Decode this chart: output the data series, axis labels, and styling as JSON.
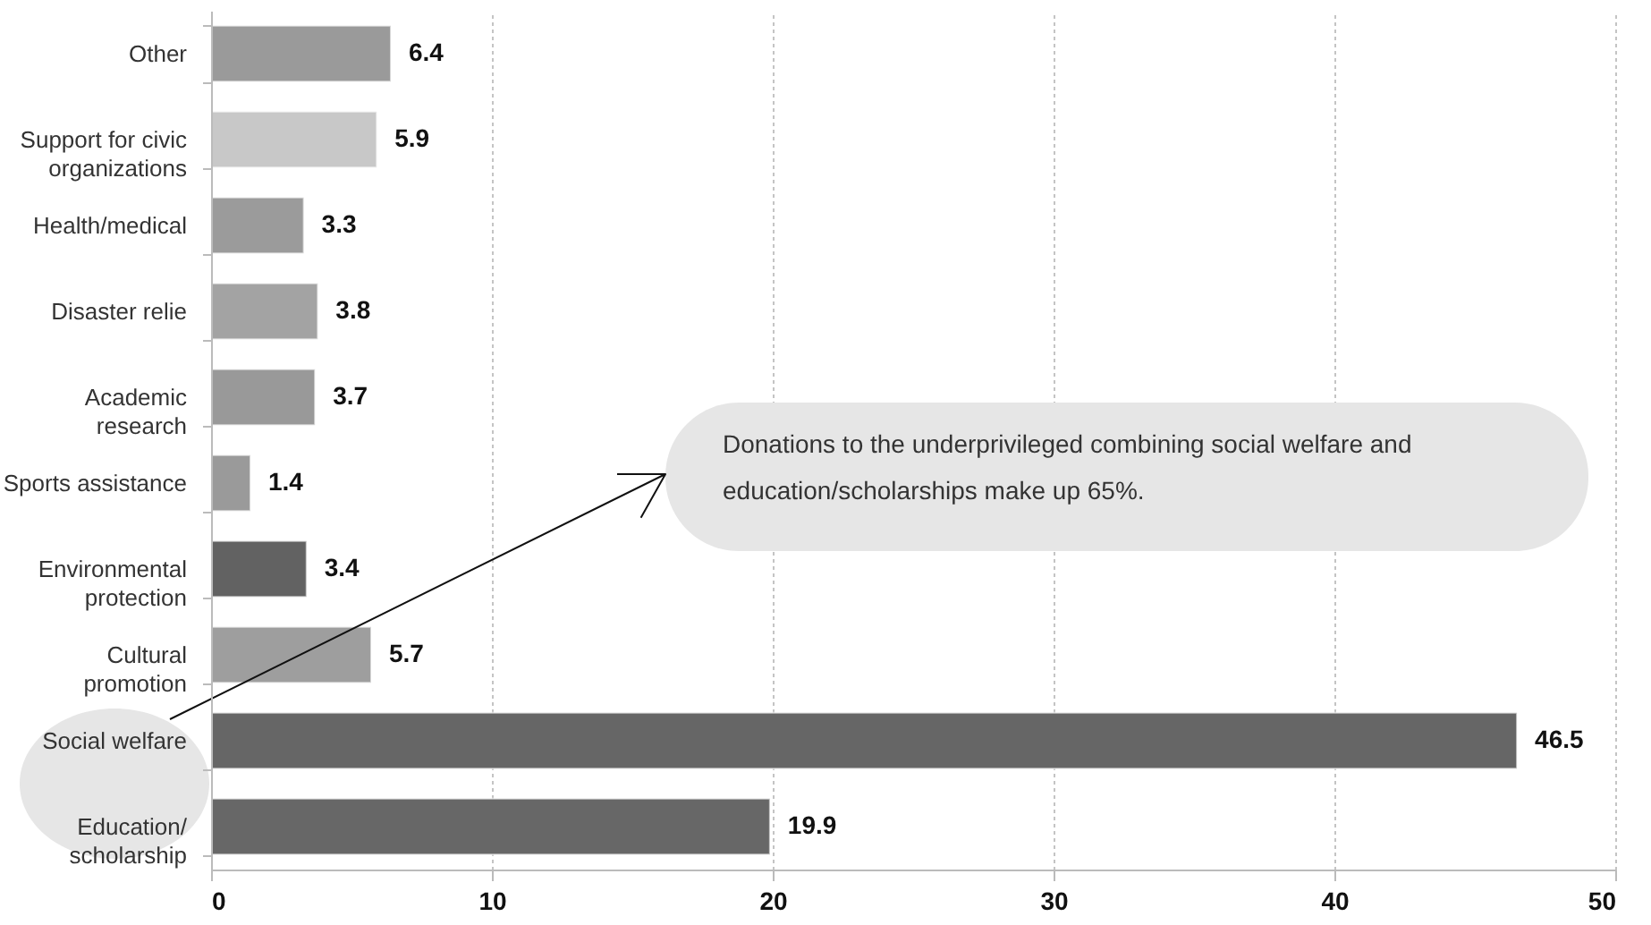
{
  "chart_data": {
    "type": "bar",
    "orientation": "horizontal",
    "categories": [
      "Other",
      "Support for civic organizations",
      "Health/medical",
      "Disaster relie",
      "Academic research",
      "Sports assistance",
      "Environmental protection",
      "Cultural promotion",
      "Social welfare",
      "Education/scholarship"
    ],
    "values": [
      6.4,
      5.9,
      3.3,
      3.8,
      3.7,
      1.4,
      3.4,
      5.7,
      46.5,
      19.9
    ],
    "colors": [
      "#9a9a9a",
      "#c8c8c8",
      "#9b9b9b",
      "#a3a3a3",
      "#999999",
      "#9a9a9a",
      "#626262",
      "#9e9e9e",
      "#666666",
      "#676767"
    ],
    "xlim": [
      0,
      50
    ],
    "xticks": [
      0,
      10,
      20,
      30,
      40,
      50
    ],
    "grid": "x",
    "data_labels": true,
    "annotations": [
      "Donations to the underprivileged combining social welfare and education/scholarships make up 65%."
    ]
  }
}
